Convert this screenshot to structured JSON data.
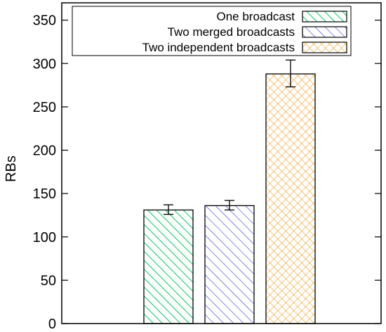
{
  "chart_data": {
    "type": "bar",
    "ylabel": "RBs",
    "ylim": [
      0,
      370
    ],
    "yticks": [
      0,
      50,
      100,
      150,
      200,
      250,
      300,
      350
    ],
    "grid": false,
    "legend_position": "top-right",
    "series": [
      {
        "name": "One broadcast",
        "value": 131,
        "error": [
          126,
          137
        ],
        "color": "#00cc66",
        "pattern": "diagonal-down"
      },
      {
        "name": "Two merged broadcasts",
        "value": 136,
        "error": [
          131,
          142
        ],
        "color": "#3333dd",
        "pattern": "diagonal-down"
      },
      {
        "name": "Two independent broadcasts",
        "value": 288,
        "error": [
          273,
          304
        ],
        "color": "#f0a020",
        "pattern": "crosshatch"
      }
    ]
  }
}
